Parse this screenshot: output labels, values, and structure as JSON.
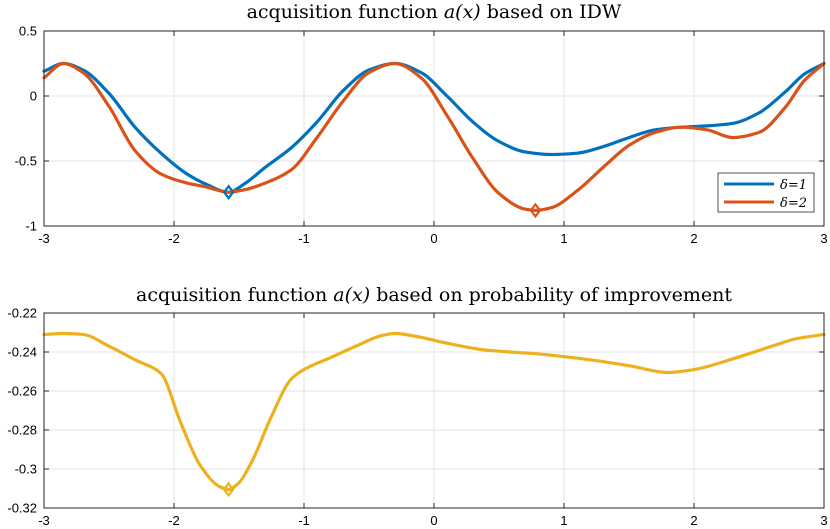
{
  "chart_data": [
    {
      "type": "line",
      "title": "acquisition function a(x) based on IDW",
      "title_prefix": "acquisition function ",
      "title_math": "a(x)",
      "title_suffix": " based on IDW",
      "xlabel": "",
      "ylabel": "",
      "xlim": [
        -3,
        3
      ],
      "ylim": [
        -1,
        0.5
      ],
      "xticks": [
        -3,
        -2,
        -1,
        0,
        1,
        2,
        3
      ],
      "xtick_labels": [
        "-3",
        "-2",
        "-1",
        "0",
        "1",
        "2",
        "3"
      ],
      "yticks": [
        -1,
        -0.5,
        0,
        0.5
      ],
      "ytick_labels": [
        "-1",
        "-0.5",
        "0",
        "0.5"
      ],
      "grid": true,
      "legend_position": "bottom-right",
      "series": [
        {
          "name": "δ=1",
          "color": "#0072BD",
          "x": [
            -3,
            -2.85,
            -2.7,
            -2.5,
            -2.3,
            -2.1,
            -1.9,
            -1.75,
            -1.58,
            -1.45,
            -1.3,
            -1.1,
            -0.9,
            -0.7,
            -0.5,
            -0.3,
            -0.1,
            0.1,
            0.3,
            0.5,
            0.7,
            0.9,
            1.1,
            1.3,
            1.5,
            1.7,
            1.9,
            2.1,
            2.3,
            2.5,
            2.7,
            2.85,
            3
          ],
          "y": [
            0.19,
            0.25,
            0.2,
            0.02,
            -0.24,
            -0.44,
            -0.6,
            -0.68,
            -0.74,
            -0.67,
            -0.55,
            -0.4,
            -0.2,
            0.04,
            0.2,
            0.25,
            0.18,
            0.0,
            -0.2,
            -0.35,
            -0.43,
            -0.45,
            -0.44,
            -0.39,
            -0.32,
            -0.26,
            -0.24,
            -0.23,
            -0.21,
            -0.13,
            0.03,
            0.17,
            0.25
          ]
        },
        {
          "name": "δ=2",
          "color": "#D95319",
          "x": [
            -3,
            -2.85,
            -2.7,
            -2.5,
            -2.3,
            -2.1,
            -1.9,
            -1.75,
            -1.58,
            -1.45,
            -1.3,
            -1.1,
            -0.9,
            -0.7,
            -0.5,
            -0.3,
            -0.1,
            0.1,
            0.3,
            0.5,
            0.7,
            0.78,
            0.9,
            1.1,
            1.3,
            1.5,
            1.7,
            1.9,
            2.1,
            2.3,
            2.5,
            2.7,
            2.85,
            3
          ],
          "y": [
            0.14,
            0.25,
            0.18,
            -0.08,
            -0.42,
            -0.6,
            -0.67,
            -0.7,
            -0.74,
            -0.72,
            -0.67,
            -0.57,
            -0.32,
            -0.04,
            0.18,
            0.25,
            0.14,
            -0.15,
            -0.48,
            -0.75,
            -0.87,
            -0.88,
            -0.86,
            -0.73,
            -0.55,
            -0.38,
            -0.28,
            -0.24,
            -0.26,
            -0.32,
            -0.28,
            -0.09,
            0.12,
            0.25
          ]
        }
      ],
      "markers": [
        {
          "series": "δ=1",
          "x": -1.58,
          "y": -0.74,
          "shape": "diamond"
        },
        {
          "series": "δ=2",
          "x": 0.78,
          "y": -0.88,
          "shape": "diamond"
        }
      ]
    },
    {
      "type": "line",
      "title": "acquisition function a(x) based on probability of improvement",
      "title_prefix": "acquisition function ",
      "title_math": "a(x)",
      "title_suffix": " based on probability of improvement",
      "xlabel": "",
      "ylabel": "",
      "xlim": [
        -3,
        3
      ],
      "ylim": [
        -0.32,
        -0.22
      ],
      "xticks": [
        -3,
        -2,
        -1,
        0,
        1,
        2,
        3
      ],
      "xtick_labels": [
        "-3",
        "-2",
        "-1",
        "0",
        "1",
        "2",
        "3"
      ],
      "yticks": [
        -0.32,
        -0.3,
        -0.28,
        -0.26,
        -0.24,
        -0.22
      ],
      "ytick_labels": [
        "-0.32",
        "-0.3",
        "-0.28",
        "-0.26",
        "-0.24",
        "-0.22"
      ],
      "grid": true,
      "series": [
        {
          "name": "probability of improvement",
          "color": "#EDB120",
          "x": [
            -3,
            -2.85,
            -2.7,
            -2.5,
            -2.3,
            -2.1,
            -1.95,
            -1.8,
            -1.65,
            -1.58,
            -1.5,
            -1.4,
            -1.25,
            -1.1,
            -1.0,
            -0.8,
            -0.6,
            -0.4,
            -0.3,
            -0.1,
            0.1,
            0.4,
            0.8,
            1.2,
            1.5,
            1.8,
            2.0,
            2.3,
            2.6,
            2.8,
            3
          ],
          "y": [
            -0.231,
            -0.2305,
            -0.231,
            -0.237,
            -0.244,
            -0.251,
            -0.276,
            -0.298,
            -0.309,
            -0.3105,
            -0.307,
            -0.296,
            -0.273,
            -0.254,
            -0.249,
            -0.243,
            -0.237,
            -0.2315,
            -0.2305,
            -0.2325,
            -0.2355,
            -0.239,
            -0.241,
            -0.244,
            -0.247,
            -0.2505,
            -0.249,
            -0.2435,
            -0.237,
            -0.233,
            -0.231
          ]
        }
      ],
      "markers": [
        {
          "series": "probability of improvement",
          "x": -1.58,
          "y": -0.3105,
          "shape": "diamond"
        }
      ]
    }
  ]
}
